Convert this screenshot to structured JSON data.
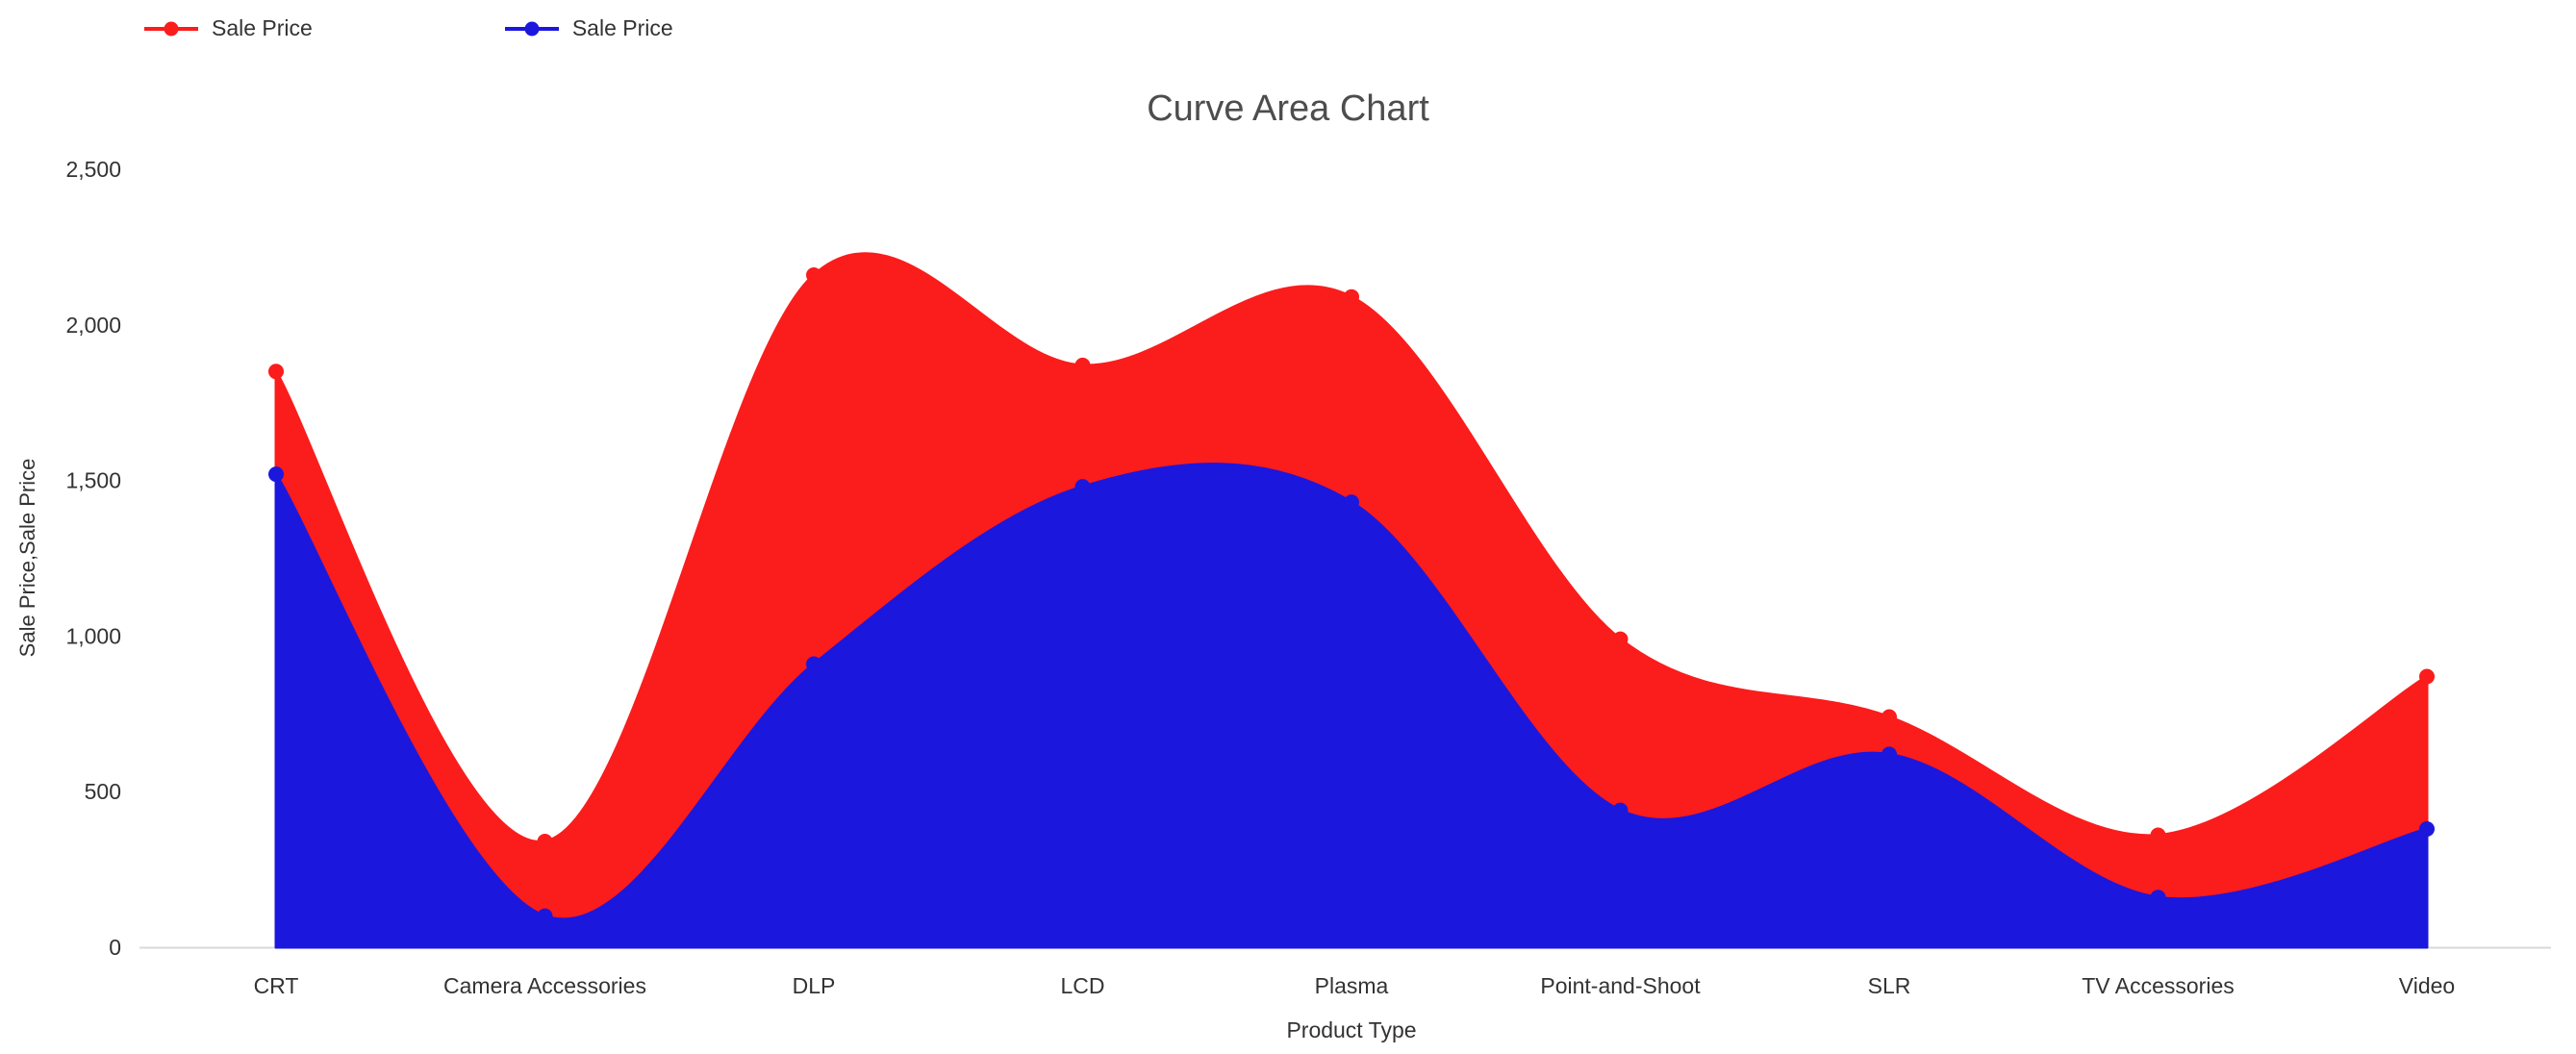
{
  "page": {
    "background": "#ffffff"
  },
  "legend": {
    "items": [
      {
        "label": "Sale Price",
        "color": "#fb1c1c"
      },
      {
        "label": "Sale Price",
        "color": "#1c17dd"
      }
    ]
  },
  "chart_data": {
    "type": "area",
    "curve": "spline",
    "title": "Curve Area Chart",
    "xlabel": "Product Type",
    "ylabel": "Sale Price,Sale Price",
    "categories": [
      "CRT",
      "Camera Accessories",
      "DLP",
      "LCD",
      "Plasma",
      "Point-and-Shoot",
      "SLR",
      "TV Accessories",
      "Video"
    ],
    "series": [
      {
        "name": "Sale Price",
        "color": "#fb1c1c",
        "values": [
          1850,
          340,
          2160,
          1870,
          2090,
          990,
          740,
          360,
          870
        ]
      },
      {
        "name": "Sale Price",
        "color": "#1c17dd",
        "values": [
          1520,
          100,
          910,
          1480,
          1430,
          440,
          620,
          160,
          380
        ]
      }
    ],
    "ylim": [
      0,
      2500
    ],
    "yticks": [
      {
        "value": 0,
        "label": "0"
      },
      {
        "value": 500,
        "label": "500"
      },
      {
        "value": 1000,
        "label": "1,000"
      },
      {
        "value": 1500,
        "label": "1,500"
      },
      {
        "value": 2000,
        "label": "2,000"
      },
      {
        "value": 2500,
        "label": "2,500"
      }
    ],
    "grid": false,
    "markers": true,
    "legend_position": "top-left",
    "axis_color": "#d9d9d9",
    "text_color": "#333333"
  }
}
